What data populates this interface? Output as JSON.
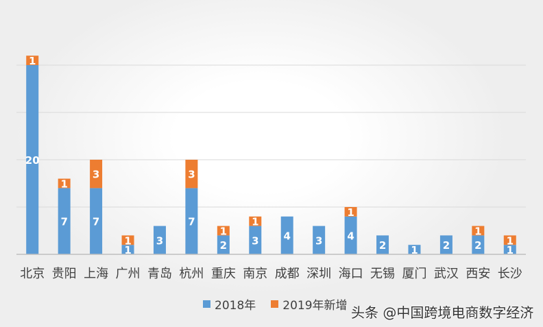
{
  "chart_data": {
    "type": "bar",
    "stacked": true,
    "categories": [
      "北京",
      "贵阳",
      "上海",
      "广州",
      "青岛",
      "杭州",
      "重庆",
      "南京",
      "成都",
      "深圳",
      "海口",
      "无锡",
      "厦门",
      "武汉",
      "西安",
      "长沙"
    ],
    "series": [
      {
        "name": "2018年",
        "color": "#5B9BD5",
        "values": [
          20,
          7,
          7,
          1,
          3,
          7,
          2,
          3,
          4,
          3,
          4,
          2,
          1,
          2,
          2,
          1
        ]
      },
      {
        "name": "2019年新增",
        "color": "#ED7D31",
        "values": [
          1,
          1,
          3,
          1,
          0,
          3,
          1,
          1,
          0,
          0,
          1,
          0,
          0,
          0,
          1,
          1
        ]
      }
    ],
    "ylim": [
      0,
      21
    ],
    "grid": true,
    "legend_position": "bottom",
    "title": "",
    "xlabel": "",
    "ylabel": ""
  },
  "watermark": "头条 @中国跨境电商数字经济"
}
